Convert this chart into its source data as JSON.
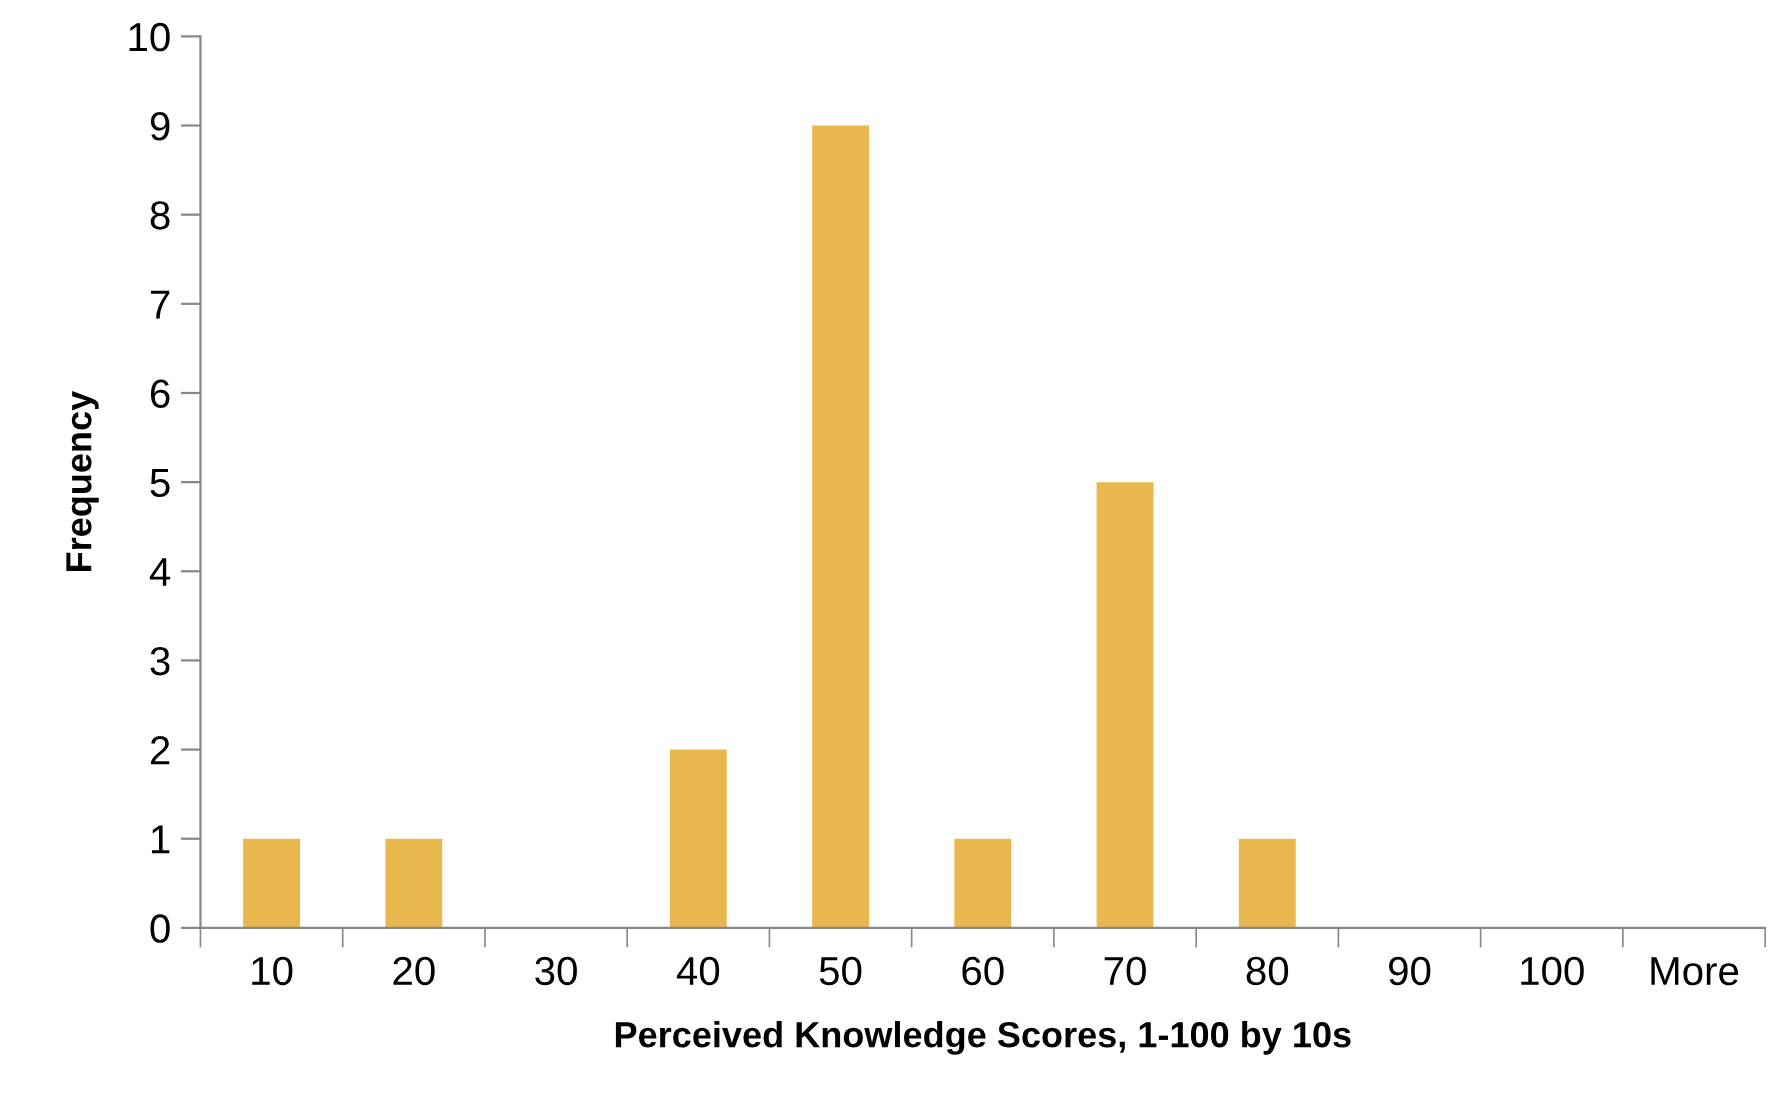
{
  "chart_data": {
    "type": "bar",
    "xlabel": "Perceived Knowledge Scores, 1-100 by 10s",
    "ylabel": "Frequency",
    "categories": [
      "10",
      "20",
      "30",
      "40",
      "50",
      "60",
      "70",
      "80",
      "90",
      "100",
      "More"
    ],
    "values": [
      1,
      1,
      0,
      2,
      9,
      1,
      5,
      1,
      0,
      0,
      0
    ],
    "color": "#e8b84e",
    "ylim": [
      0,
      10
    ],
    "yticks": [
      0,
      1,
      2,
      3,
      4,
      5,
      6,
      7,
      8,
      9,
      10
    ],
    "grid": false,
    "legend": false
  }
}
